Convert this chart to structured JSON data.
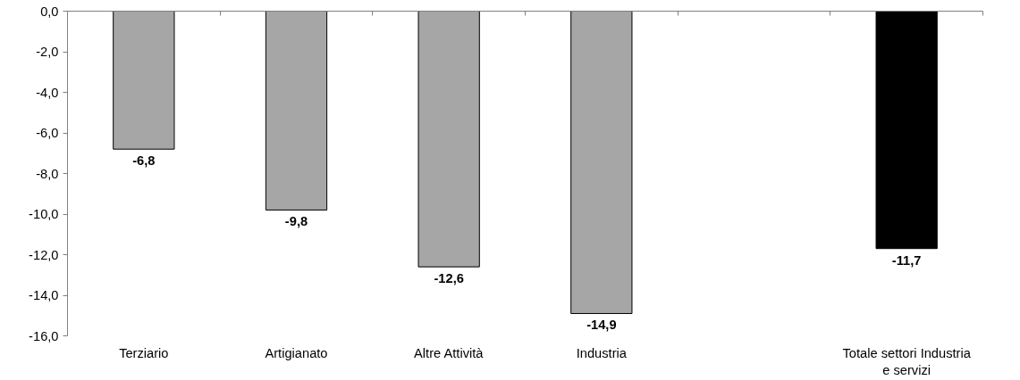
{
  "chart_data": {
    "type": "bar",
    "categories": [
      "Terziario",
      "Artigianato",
      "Altre Attività",
      "Industria",
      null,
      "Totale settori Industria e servizi"
    ],
    "values": [
      -6.8,
      -9.8,
      -12.6,
      -14.9,
      null,
      -11.7
    ],
    "colors": [
      "#a6a6a6",
      "#a6a6a6",
      "#a6a6a6",
      "#a6a6a6",
      "#a6a6a6",
      "#000000"
    ],
    "ylim": [
      -16,
      0
    ],
    "yticks": [
      {
        "value": 0,
        "label": "0,0"
      },
      {
        "value": -2,
        "label": "-2,0"
      },
      {
        "value": -4,
        "label": "-4,0"
      },
      {
        "value": -6,
        "label": "-6,0"
      },
      {
        "value": -8,
        "label": "-8,0"
      },
      {
        "value": -10,
        "label": "-10,0"
      },
      {
        "value": -12,
        "label": "-12,0"
      },
      {
        "value": -14,
        "label": "-14,0"
      },
      {
        "value": -16,
        "label": "-16,0"
      }
    ],
    "value_labels": [
      "-6,8",
      "-9,8",
      "-12,6",
      "-14,9",
      null,
      "-11,7"
    ],
    "grid": false
  }
}
